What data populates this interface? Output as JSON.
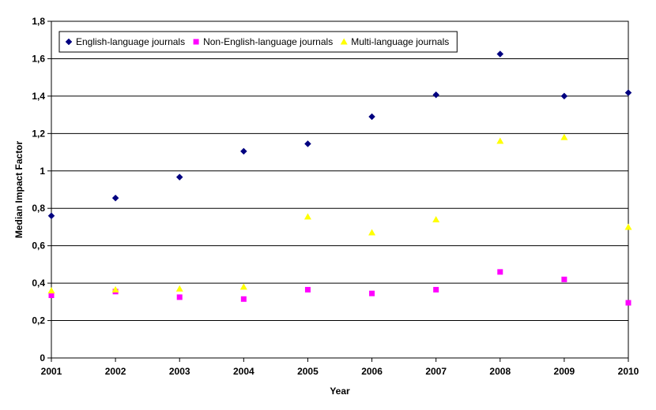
{
  "chart_data": {
    "type": "scatter",
    "title": "",
    "xlabel": "Year",
    "ylabel": "Median Impact Factor",
    "x": [
      "2001",
      "2002",
      "2003",
      "2004",
      "2005",
      "2006",
      "2007",
      "2008",
      "2009",
      "2010"
    ],
    "yticks": [
      "0",
      "0,2",
      "0,4",
      "0,6",
      "0,8",
      "1",
      "1,2",
      "1,4",
      "1,6",
      "1,8"
    ],
    "ylim": [
      0,
      1.8
    ],
    "grid": "horizontal",
    "legend_position": "top-left",
    "series": [
      {
        "name": "English-language journals",
        "marker": "diamond",
        "color": "#000080",
        "values": [
          0.76,
          0.855,
          0.967,
          1.105,
          1.145,
          1.29,
          1.407,
          1.625,
          1.4,
          1.418
        ]
      },
      {
        "name": "Non-English-language journals",
        "marker": "square",
        "color": "#FF00FF",
        "values": [
          0.335,
          0.355,
          0.325,
          0.315,
          0.365,
          0.345,
          0.365,
          0.46,
          0.42,
          0.295
        ]
      },
      {
        "name": "Multi-language journals",
        "marker": "triangle",
        "color": "#FFFF00",
        "values": [
          0.36,
          0.365,
          0.37,
          0.38,
          0.755,
          0.67,
          0.74,
          1.16,
          1.18,
          0.7
        ]
      }
    ]
  }
}
